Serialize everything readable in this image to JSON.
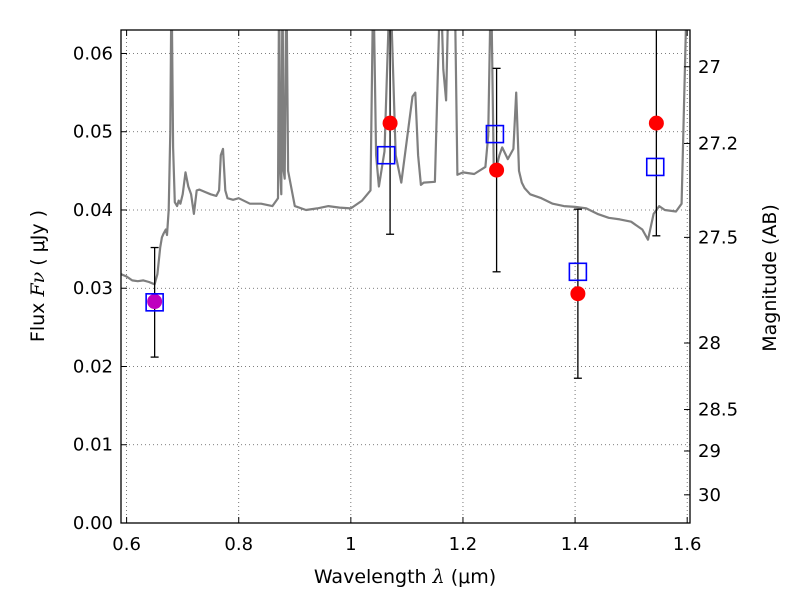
{
  "chart_data": {
    "type": "scatter",
    "xlabel": {
      "prefix": "Wavelength ",
      "symbol": "λ",
      "units": " (μm)"
    },
    "ylabel": {
      "prefix": "Flux  ",
      "symbol": "Fν",
      "units": " ( μJy )"
    },
    "y2label": "Magnitude (AB)",
    "xlim": [
      0.59,
      1.605
    ],
    "ylim": [
      0.0,
      0.063
    ],
    "grid": true,
    "xticks": [
      {
        "value": 0.6,
        "label": "0.6"
      },
      {
        "value": 0.8,
        "label": "0.8"
      },
      {
        "value": 1.0,
        "label": "1"
      },
      {
        "value": 1.2,
        "label": "1.2"
      },
      {
        "value": 1.4,
        "label": "1.4"
      },
      {
        "value": 1.6,
        "label": "1.6"
      }
    ],
    "yticks": [
      {
        "value": 0.0,
        "label": "0.00"
      },
      {
        "value": 0.01,
        "label": "0.01"
      },
      {
        "value": 0.02,
        "label": "0.02"
      },
      {
        "value": 0.03,
        "label": "0.03"
      },
      {
        "value": 0.04,
        "label": "0.04"
      },
      {
        "value": 0.05,
        "label": "0.05"
      },
      {
        "value": 0.06,
        "label": "0.06"
      }
    ],
    "y2ticks": [
      {
        "flux": 0.0583,
        "label": "27"
      },
      {
        "flux": 0.0485,
        "label": "27.2"
      },
      {
        "flux": 0.0365,
        "label": "27.5"
      },
      {
        "flux": 0.023,
        "label": "28"
      },
      {
        "flux": 0.0145,
        "label": "28.5"
      },
      {
        "flux": 0.0092,
        "label": "29"
      },
      {
        "flux": 0.0036,
        "label": "30"
      }
    ],
    "colors": {
      "model": "#7f7f7f",
      "observed": "#ff0000",
      "model_photometry": "#0000ff",
      "overlap": "#bf00bf",
      "error_bar": "#000000",
      "grid": "#555555"
    },
    "series": [
      {
        "kind": "model_spectrum",
        "x": [
          0.59,
          0.6,
          0.61,
          0.62,
          0.63,
          0.64,
          0.65,
          0.655,
          0.66,
          0.663,
          0.666,
          0.67,
          0.672,
          0.675,
          0.678,
          0.68,
          0.683,
          0.686,
          0.69,
          0.693,
          0.696,
          0.7,
          0.705,
          0.71,
          0.715,
          0.72,
          0.725,
          0.73,
          0.74,
          0.75,
          0.76,
          0.765,
          0.768,
          0.772,
          0.776,
          0.78,
          0.79,
          0.8,
          0.82,
          0.84,
          0.86,
          0.87,
          0.872,
          0.874,
          0.876,
          0.878,
          0.88,
          0.882,
          0.885,
          0.888,
          0.9,
          0.92,
          0.94,
          0.96,
          0.98,
          1.0,
          1.02,
          1.035,
          1.04,
          1.045,
          1.05,
          1.06,
          1.07,
          1.08,
          1.09,
          1.1,
          1.11,
          1.115,
          1.12,
          1.125,
          1.13,
          1.15,
          1.16,
          1.165,
          1.17,
          1.175,
          1.18,
          1.185,
          1.19,
          1.2,
          1.22,
          1.24,
          1.245,
          1.25,
          1.255,
          1.26,
          1.265,
          1.27,
          1.28,
          1.29,
          1.295,
          1.3,
          1.305,
          1.31,
          1.32,
          1.34,
          1.36,
          1.38,
          1.4,
          1.42,
          1.44,
          1.46,
          1.48,
          1.5,
          1.52,
          1.53,
          1.54,
          1.55,
          1.56,
          1.58,
          1.59,
          1.6,
          1.605
        ],
        "y": [
          0.0318,
          0.0315,
          0.031,
          0.0309,
          0.031,
          0.0308,
          0.0305,
          0.0318,
          0.0352,
          0.0365,
          0.037,
          0.0375,
          0.0368,
          0.04,
          0.05,
          0.07,
          0.048,
          0.041,
          0.0405,
          0.0412,
          0.0408,
          0.042,
          0.0448,
          0.043,
          0.042,
          0.0395,
          0.0425,
          0.0426,
          0.0423,
          0.042,
          0.0418,
          0.0425,
          0.047,
          0.0478,
          0.0425,
          0.0415,
          0.0413,
          0.0415,
          0.0408,
          0.0408,
          0.0405,
          0.0415,
          0.07,
          0.045,
          0.042,
          0.07,
          0.045,
          0.044,
          0.07,
          0.045,
          0.0405,
          0.04,
          0.0402,
          0.0405,
          0.0403,
          0.0402,
          0.0412,
          0.0425,
          0.07,
          0.047,
          0.043,
          0.0475,
          0.07,
          0.047,
          0.0435,
          0.049,
          0.0545,
          0.055,
          0.047,
          0.0432,
          0.0435,
          0.0436,
          0.07,
          0.058,
          0.054,
          0.07,
          0.07,
          0.07,
          0.0445,
          0.0448,
          0.0446,
          0.0455,
          0.0495,
          0.07,
          0.045,
          0.0455,
          0.047,
          0.048,
          0.0465,
          0.0478,
          0.055,
          0.045,
          0.0435,
          0.0428,
          0.042,
          0.0415,
          0.0408,
          0.0405,
          0.0404,
          0.0402,
          0.0395,
          0.039,
          0.0388,
          0.0385,
          0.0375,
          0.0362,
          0.0395,
          0.0405,
          0.04,
          0.0398,
          0.0408,
          0.07,
          0.07
        ]
      },
      {
        "kind": "observed",
        "x": [
          0.65,
          1.07,
          1.26,
          1.405,
          1.545
        ],
        "y": [
          0.0283,
          0.0511,
          0.0451,
          0.0293,
          0.0511
        ],
        "yerr_low": [
          0.0212,
          0.0369,
          0.0321,
          0.0185,
          0.0367
        ],
        "yerr_high": [
          0.0352,
          0.0655,
          0.0581,
          0.0401,
          0.0655
        ]
      },
      {
        "kind": "model_photometry",
        "x": [
          0.65,
          1.063,
          1.257,
          1.405,
          1.543
        ],
        "y": [
          0.0282,
          0.047,
          0.0497,
          0.0321,
          0.0455
        ]
      }
    ]
  }
}
